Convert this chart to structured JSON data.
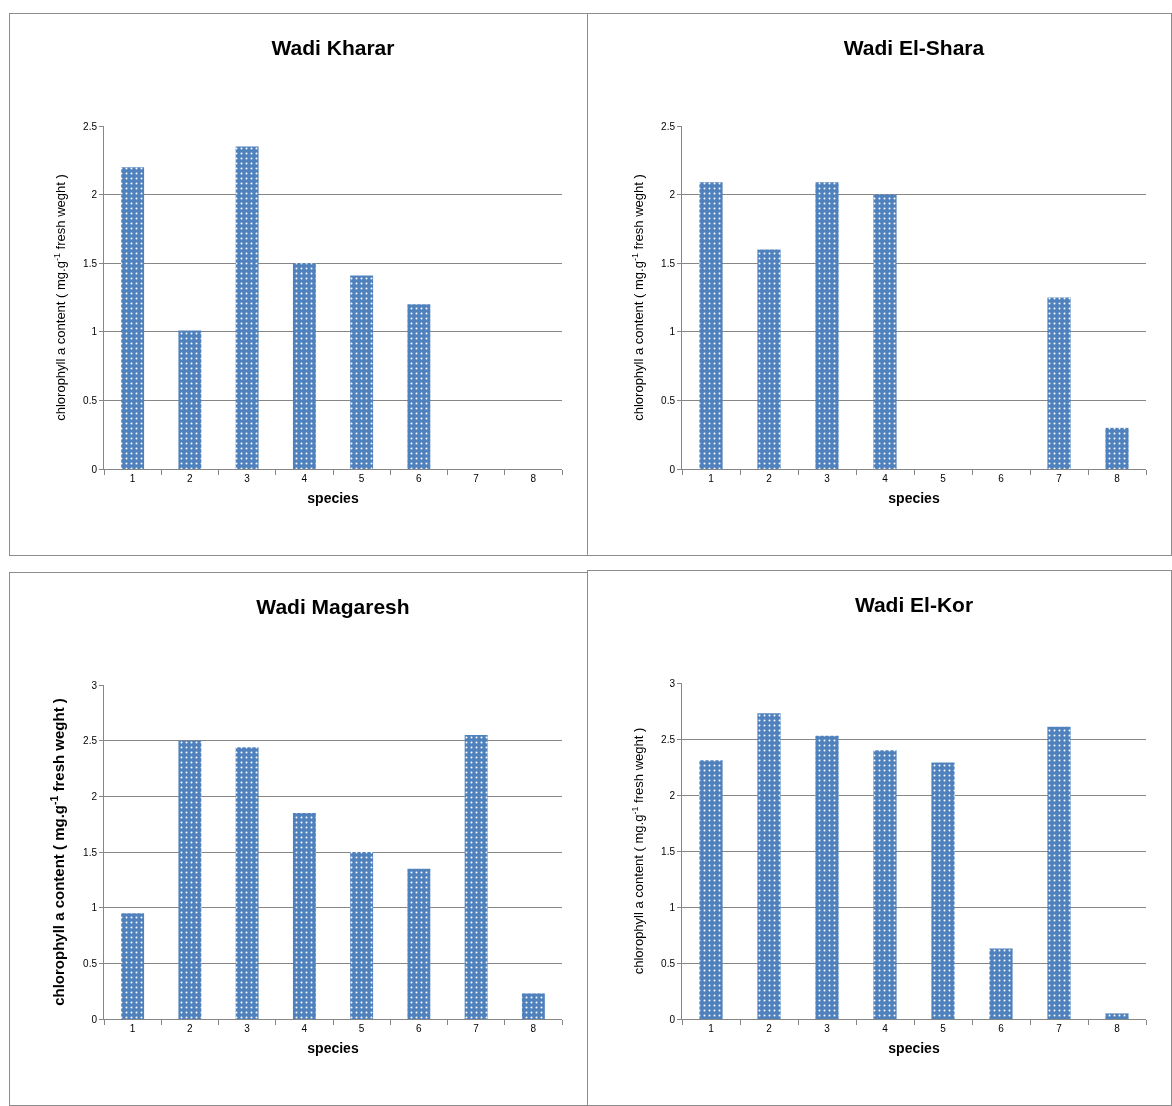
{
  "chart_data": [
    {
      "type": "bar",
      "title": "Wadi Kharar",
      "xlabel": "species",
      "ylabel": "chlorophyll a content ( mg.g$^{-1}$ fresh weght )",
      "categories": [
        "1",
        "2",
        "3",
        "4",
        "5",
        "6",
        "7",
        "8"
      ],
      "values": [
        2.2,
        1.01,
        2.35,
        1.5,
        1.41,
        1.2,
        null,
        null
      ],
      "color": "#4f81bd",
      "ylim": [
        0,
        2.5
      ],
      "yticks": [
        0,
        0.5,
        1,
        1.5,
        2,
        2.5
      ],
      "grid": "y"
    },
    {
      "type": "bar",
      "title": "Wadi El-Shara",
      "xlabel": "species",
      "ylabel": "chlorophyll a content ( mg.g$^{-1}$ fresh weght )",
      "categories": [
        "1",
        "2",
        "3",
        "4",
        "5",
        "6",
        "7",
        "8"
      ],
      "values": [
        2.09,
        1.6,
        2.09,
        2.0,
        null,
        null,
        1.25,
        0.3
      ],
      "color": "#4f81bd",
      "ylim": [
        0,
        2.5
      ],
      "yticks": [
        0,
        0.5,
        1,
        1.5,
        2,
        2.5
      ],
      "grid": "y"
    },
    {
      "type": "bar",
      "title": "Wadi Magaresh",
      "xlabel": "species",
      "ylabel": "chlorophyll a content ( mg.g$^{-1}$ fresh weght )",
      "categories": [
        "1",
        "2",
        "3",
        "4",
        "5",
        "6",
        "7",
        "8"
      ],
      "values": [
        0.95,
        2.5,
        2.44,
        1.85,
        1.5,
        1.35,
        2.55,
        0.23
      ],
      "color": "#4f81bd",
      "ylim": [
        0,
        3
      ],
      "yticks": [
        0,
        0.5,
        1,
        1.5,
        2,
        2.5,
        3
      ],
      "grid": "y"
    },
    {
      "type": "bar",
      "title": "Wadi El-Kor",
      "xlabel": "species",
      "ylabel": "chlorophyll a content ( mg.g$^{-1}$ fresh weght )",
      "categories": [
        "1",
        "2",
        "3",
        "4",
        "5",
        "6",
        "7",
        "8"
      ],
      "values": [
        2.31,
        2.73,
        2.53,
        2.4,
        2.29,
        0.63,
        2.61,
        0.05
      ],
      "color": "#4f81bd",
      "ylim": [
        0,
        3
      ],
      "yticks": [
        0,
        0.5,
        1,
        1.5,
        2,
        2.5,
        3
      ],
      "grid": "y"
    }
  ]
}
